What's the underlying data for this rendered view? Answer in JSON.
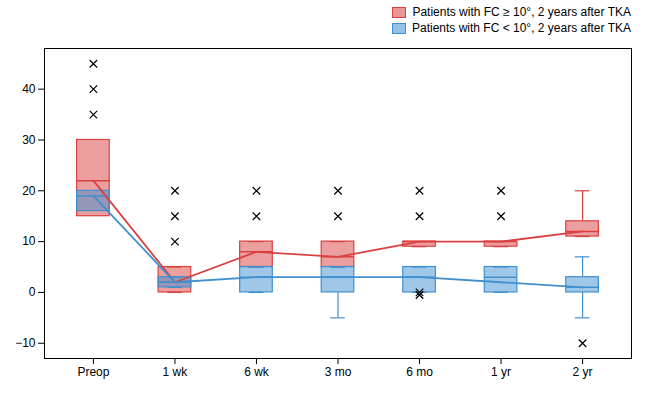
{
  "chart_data": {
    "type": "box",
    "categories": [
      "Preop",
      "1 wk",
      "6 wk",
      "3 mo",
      "6 mo",
      "1 yr",
      "2 yr"
    ],
    "series": [
      {
        "name": "Patients with FC ≥ 10°, 2 years after TKA",
        "color": "#d94040",
        "values": [
          22,
          2,
          8,
          7,
          10,
          10,
          12
        ],
        "boxes": [
          {
            "whisker_low": null,
            "q1": 15,
            "median": 22,
            "q3": 30,
            "whisker_high": null,
            "outliers": [
              45,
              40,
              35
            ]
          },
          {
            "whisker_low": 0,
            "q1": 0,
            "median": 2,
            "q3": 5,
            "whisker_high": 5,
            "outliers": [
              20,
              15,
              10
            ]
          },
          {
            "whisker_low": 5,
            "q1": 5,
            "median": 8,
            "q3": 10,
            "whisker_high": 10,
            "outliers": [
              20,
              15
            ]
          },
          {
            "whisker_low": 5,
            "q1": 5,
            "median": 7,
            "q3": 10,
            "whisker_high": 10,
            "outliers": [
              20,
              15
            ]
          },
          {
            "whisker_low": 9,
            "q1": 9,
            "median": 10,
            "q3": 10,
            "whisker_high": 10,
            "outliers": [
              20,
              15
            ]
          },
          {
            "whisker_low": 9,
            "q1": 9,
            "median": 10,
            "q3": 10,
            "whisker_high": 10,
            "outliers": [
              20,
              15
            ]
          },
          {
            "whisker_low": 11,
            "q1": 11,
            "median": 12,
            "q3": 14,
            "whisker_high": 20,
            "outliers": []
          }
        ]
      },
      {
        "name": "Patients with FC < 10°, 2 years after TKA",
        "color": "#4090d0",
        "values": [
          19,
          2,
          3,
          3,
          3,
          2,
          1
        ],
        "boxes": [
          {
            "whisker_low": null,
            "q1": 16,
            "median": 19,
            "q3": 20,
            "whisker_high": null,
            "outliers": []
          },
          {
            "whisker_low": 1,
            "q1": 1,
            "median": 2,
            "q3": 3,
            "whisker_high": 3,
            "outliers": []
          },
          {
            "whisker_low": 0,
            "q1": 0,
            "median": 3,
            "q3": 5,
            "whisker_high": 5,
            "outliers": []
          },
          {
            "whisker_low": -5,
            "q1": 0,
            "median": 3,
            "q3": 5,
            "whisker_high": 5,
            "outliers": []
          },
          {
            "whisker_low": 0,
            "q1": 0,
            "median": 3,
            "q3": 5,
            "whisker_high": 5,
            "outliers": [
              0,
              -0.5
            ]
          },
          {
            "whisker_low": 0,
            "q1": 0,
            "median": 3,
            "q3": 5,
            "whisker_high": 5,
            "outliers": []
          },
          {
            "whisker_low": -5,
            "q1": 0,
            "median": 1,
            "q3": 3,
            "whisker_high": 7,
            "outliers": [
              -10
            ]
          }
        ]
      }
    ],
    "ylim": [
      -13,
      48
    ],
    "yticks": [
      -10,
      0,
      10,
      20,
      30,
      40
    ],
    "grid": false,
    "legend": "upper right"
  }
}
